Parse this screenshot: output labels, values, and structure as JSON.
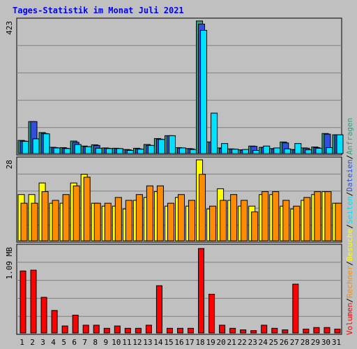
{
  "chart_data": {
    "type": "bar",
    "title": "Tages-Statistik im Monat Juli 2021",
    "categories": [
      "1",
      "2",
      "3",
      "4",
      "5",
      "6",
      "7",
      "8",
      "9",
      "10",
      "11",
      "12",
      "13",
      "14",
      "15",
      "16",
      "17",
      "18",
      "19",
      "20",
      "21",
      "22",
      "23",
      "24",
      "25",
      "26",
      "27",
      "28",
      "29",
      "30",
      "31"
    ],
    "weekend_days": [
      "3",
      "4",
      "10",
      "11",
      "17",
      "18",
      "24",
      "25",
      "31"
    ],
    "panels": [
      {
        "id": "top",
        "max_label": "423",
        "ymax": 423,
        "series": [
          {
            "name": "Anfragen",
            "color": "#2ca084",
            "values": [
              42,
              102,
              67,
              20,
              19,
              40,
              24,
              28,
              18,
              17,
              13,
              17,
              29,
              48,
              57,
              19,
              16,
              423,
              37,
              18,
              15,
              12,
              24,
              20,
              16,
              37,
              13,
              18,
              21,
              64,
              60
            ]
          },
          {
            "name": "Dateien",
            "color": "#3050e0",
            "values": [
              40,
              102,
              64,
              19,
              17,
              36,
              22,
              26,
              17,
              16,
              12,
              15,
              26,
              46,
              57,
              18,
              15,
              413,
              37,
              16,
              14,
              11,
              23,
              19,
              15,
              34,
              12,
              17,
              19,
              62,
              60
            ]
          },
          {
            "name": "Seiten",
            "color": "#00e0ff",
            "values": [
              39,
              47,
              63,
              18,
              16,
              29,
              22,
              17,
              16,
              16,
              10,
              14,
              26,
              45,
              57,
              18,
              13,
              393,
              129,
              32,
              14,
              13,
              10,
              24,
              18,
              15,
              32,
              12,
              17,
              19,
              60
            ]
          }
        ]
      },
      {
        "id": "middle",
        "max_label": "28",
        "ymax": 28,
        "series": [
          {
            "name": "Besuche",
            "color": "#ffff00",
            "values": [
              16,
              16,
              20,
              13,
              13,
              20,
              23,
              13,
              12,
              12,
              11,
              14,
              15,
              17,
              12,
              15,
              12,
              28,
              11,
              18,
              14,
              12,
              12,
              16,
              16,
              12,
              11,
              14,
              16,
              17,
              13
            ]
          },
          {
            "name": "Rechner",
            "color": "#ff8c00",
            "values": [
              13,
              13,
              17,
              14,
              16,
              19,
              22,
              13,
              13,
              15,
              14,
              16,
              19,
              19,
              13,
              16,
              14,
              23,
              12,
              14,
              16,
              14,
              10,
              17,
              17,
              14,
              12,
              15,
              17,
              17,
              13
            ]
          }
        ]
      },
      {
        "id": "bottom",
        "max_label": "1.09 MB",
        "ymax": 1.09,
        "series": [
          {
            "name": "Volumen",
            "color": "#ff0000",
            "values": [
              0.8,
              0.81,
              0.46,
              0.29,
              0.09,
              0.23,
              0.1,
              0.1,
              0.06,
              0.09,
              0.06,
              0.06,
              0.1,
              0.61,
              0.06,
              0.06,
              0.06,
              1.09,
              0.5,
              0.1,
              0.06,
              0.04,
              0.03,
              0.1,
              0.06,
              0.04,
              0.63,
              0.05,
              0.07,
              0.07,
              0.05
            ]
          }
        ]
      }
    ],
    "legend_right": [
      "Volumen",
      "Rechner",
      "Besuche",
      "Seiten",
      "Dateien",
      "Anfragen"
    ],
    "legend_colors": [
      "#ff0000",
      "#ff8c00",
      "#ffff00",
      "#00e0ff",
      "#3050e0",
      "#2ca084"
    ],
    "legend_separator": "/",
    "day_label_colors": {
      "weekday": "#000000",
      "weekend": "#008060"
    }
  }
}
